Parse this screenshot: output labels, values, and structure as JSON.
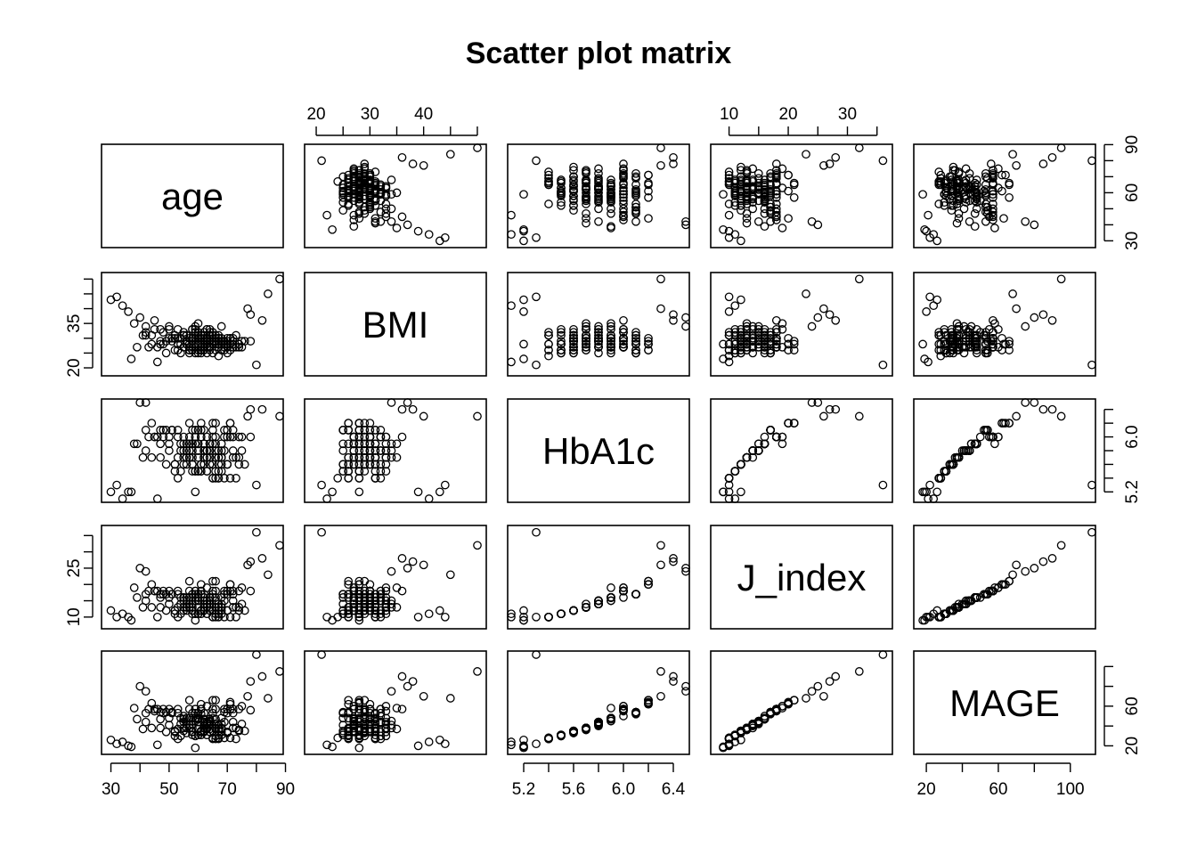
{
  "chart_data": {
    "type": "scatter",
    "title": "Scatter plot matrix",
    "variables": [
      "age",
      "BMI",
      "HbA1c",
      "J_index",
      "MAGE"
    ],
    "grid": false,
    "ranges": {
      "age": [
        28,
        88
      ],
      "BMI": [
        18.5,
        51
      ],
      "HbA1c": [
        5.1,
        6.5
      ],
      "J_index": [
        7.5,
        37
      ],
      "MAGE": [
        15,
        112
      ]
    },
    "axes": {
      "age": {
        "ticks": [
          30,
          50,
          70,
          90
        ],
        "labels": [
          "30",
          "50",
          "70",
          "90"
        ],
        "side": "bottom"
      },
      "BMI": {
        "ticks": [
          20,
          30,
          40
        ],
        "labels": [
          "20",
          "30",
          "40"
        ],
        "side": "top",
        "minor_ticks": [
          20,
          25,
          30,
          35,
          40,
          45,
          50
        ],
        "left_ticks": [
          20,
          25,
          30,
          35,
          40,
          45,
          50
        ],
        "left_labels": {
          "20": "20",
          "35": "35"
        }
      },
      "HbA1c": {
        "ticks": [
          5.2,
          5.6,
          6.0,
          6.4
        ],
        "labels": [
          "5.2",
          "5.6",
          "6.0",
          "6.4"
        ],
        "side": "bottom",
        "minor_ticks": [
          5.2,
          5.4,
          5.6,
          5.8,
          6.0,
          6.2,
          6.4
        ],
        "right_ticks": [
          5.2,
          5.4,
          5.6,
          5.8,
          6.0,
          6.2,
          6.4
        ],
        "right_labels": {
          "5.2": "5.2",
          "6.0": "6.0"
        }
      },
      "J_index": {
        "ticks": [
          10,
          20,
          30
        ],
        "labels": [
          "10",
          "20",
          "30"
        ],
        "side": "top",
        "minor_ticks": [
          10,
          15,
          20,
          25,
          30,
          35
        ],
        "left_ticks": [
          10,
          15,
          20,
          25,
          30,
          35
        ],
        "left_labels": {
          "10": "10",
          "25": "25"
        }
      },
      "MAGE": {
        "ticks": [
          20,
          60,
          100
        ],
        "labels": [
          "20",
          "60",
          "100"
        ],
        "side": "bottom",
        "minor_ticks": [
          20,
          40,
          60,
          80,
          100
        ],
        "right_ticks": [
          20,
          40,
          60,
          80,
          100
        ],
        "right_labels": {
          "20": "20",
          "60": "60"
        }
      },
      "age_right": {
        "ticks": [
          30,
          40,
          50,
          60,
          70,
          80,
          90
        ],
        "labels": {
          "30": "30",
          "60": "60",
          "90": "90"
        }
      },
      "age_bottom_minor": [
        30,
        40,
        50,
        60,
        70,
        80,
        90
      ]
    },
    "points": {
      "age": [
        63,
        58,
        70,
        45,
        66,
        52,
        61,
        74,
        38,
        67,
        55,
        62,
        49,
        71,
        64,
        59,
        68,
        42,
        57,
        65,
        72,
        47,
        60,
        53,
        69,
        62,
        56,
        75,
        41,
        63,
        58,
        66,
        50,
        61,
        78,
        44,
        64,
        59,
        70,
        54,
        62,
        67,
        48,
        57,
        73,
        60,
        65,
        52,
        68,
        63,
        39,
        61,
        56,
        71,
        66,
        58,
        45,
        64,
        60,
        69,
        53,
        62,
        76,
        57,
        67,
        50,
        63,
        59,
        72,
        55,
        64,
        61,
        47,
        68,
        58,
        65,
        42,
        62,
        70,
        56,
        60,
        66,
        51,
        63,
        74,
        59,
        67,
        54,
        61,
        69,
        48,
        64,
        57,
        71,
        62,
        58,
        65,
        44,
        60,
        68,
        53,
        66,
        63,
        59,
        72,
        56,
        61,
        75,
        50,
        64,
        58,
        67,
        62,
        55,
        70,
        46,
        63,
        60,
        65,
        57,
        68,
        52,
        61,
        73,
        59,
        66,
        49,
        64,
        62,
        58,
        69,
        55,
        63,
        71,
        60,
        57,
        67,
        43,
        62,
        65,
        54,
        61,
        68,
        58,
        74,
        63,
        56,
        66,
        60,
        51,
        64,
        70,
        59,
        62,
        57,
        67,
        47,
        63,
        61,
        65,
        53,
        68,
        60,
        72,
        58,
        64,
        55,
        66,
        62,
        59,
        36,
        34,
        32,
        30,
        40,
        82,
        88,
        80,
        37,
        46,
        42,
        78,
        77,
        84
      ],
      "BMI": [
        27,
        30,
        25,
        33,
        29,
        26,
        31,
        28,
        35,
        24,
        32,
        27,
        29,
        30,
        26,
        34,
        28,
        31,
        25,
        29,
        27,
        33,
        30,
        28,
        26,
        32,
        29,
        27,
        31,
        25,
        30,
        28,
        34,
        26,
        29,
        31,
        27,
        33,
        28,
        30,
        26,
        29,
        32,
        27,
        31,
        28,
        25,
        30,
        29,
        33,
        27,
        26,
        31,
        28,
        30,
        29,
        36,
        27,
        32,
        28,
        26,
        31,
        29,
        30,
        27,
        33,
        28,
        25,
        29,
        31,
        27,
        30,
        28,
        34,
        26,
        29,
        32,
        27,
        30,
        28,
        31,
        26,
        29,
        33,
        28,
        27,
        30,
        25,
        31,
        29,
        28,
        32,
        26,
        30,
        27,
        29,
        31,
        28,
        35,
        26,
        30,
        29,
        27,
        32,
        28,
        31,
        25,
        29,
        30,
        27,
        33,
        28,
        26,
        31,
        29,
        27,
        30,
        28,
        32,
        26,
        29,
        31,
        28,
        27,
        30,
        29,
        25,
        33,
        28,
        30,
        27,
        31,
        29,
        26,
        32,
        28,
        30,
        27,
        29,
        31,
        28,
        26,
        30,
        33,
        27,
        29,
        28,
        31,
        25,
        30,
        29,
        27,
        32,
        28,
        26,
        31,
        29,
        30,
        27,
        28,
        33,
        29,
        26,
        30,
        28,
        31,
        27,
        29,
        30,
        28,
        39,
        41,
        44,
        43,
        37,
        36,
        50,
        21,
        23,
        22,
        34,
        38,
        40,
        45
      ],
      "HbA1c": [
        5.7,
        5.9,
        5.6,
        6.0,
        5.8,
        5.5,
        6.1,
        5.7,
        5.9,
        5.4,
        6.0,
        5.8,
        5.6,
        6.2,
        5.7,
        5.9,
        5.5,
        6.1,
        5.8,
        5.6,
        6.0,
        5.7,
        5.9,
        5.4,
        6.1,
        5.8,
        5.6,
        6.0,
        5.7,
        5.5,
        5.9,
        6.2,
        5.8,
        5.6,
        6.0,
        5.7,
        5.9,
        5.5,
        6.1,
        5.8,
        5.6,
        5.7,
        6.0,
        5.9,
        5.4,
        5.8,
        6.1,
        5.6,
        5.7,
        6.0,
        5.9,
        5.5,
        5.8,
        6.2,
        5.7,
        5.6,
        6.0,
        5.9,
        5.8,
        5.4,
        6.1,
        5.7,
        5.6,
        6.0,
        5.8,
        5.9,
        5.5,
        6.1,
        5.7,
        5.6,
        5.8,
        6.0,
        5.9,
        5.7,
        5.5,
        6.2,
        5.8,
        5.6,
        6.0,
        5.7,
        5.9,
        5.4,
        6.1,
        5.8,
        5.6,
        6.0,
        5.7,
        5.9,
        5.5,
        5.8,
        6.1,
        5.6,
        5.7,
        6.0,
        5.9,
        5.8,
        5.4,
        6.2,
        5.7,
        5.6,
        6.0,
        5.9,
        5.8,
        5.5,
        6.1,
        5.7,
        5.6,
        5.8,
        6.0,
        5.9,
        5.7,
        5.5,
        6.1,
        5.8,
        5.6,
        6.0,
        5.7,
        5.9,
        5.4,
        6.2,
        5.8,
        5.6,
        6.0,
        5.7,
        5.9,
        5.5,
        6.1,
        5.8,
        5.7,
        5.6,
        6.0,
        5.9,
        5.8,
        5.4,
        6.1,
        5.7,
        5.6,
        6.0,
        5.8,
        5.9,
        5.5,
        6.2,
        5.7,
        5.6,
        6.0,
        5.8,
        5.9,
        5.7,
        5.5,
        6.1,
        5.8,
        5.6,
        6.0,
        5.7,
        5.9,
        5.4,
        6.1,
        5.8,
        5.6,
        6.0,
        5.7,
        5.9,
        5.5,
        5.8,
        6.1,
        5.6,
        5.7,
        6.0,
        5.9,
        5.2,
        5.2,
        5.1,
        5.3,
        5.2,
        6.5,
        6.4,
        6.3,
        5.3,
        5.2,
        5.1,
        6.5,
        6.4,
        6.3
      ],
      "J_index": [
        14,
        16,
        12,
        18,
        15,
        11,
        17,
        13,
        19,
        10,
        16,
        14,
        12,
        20,
        13,
        15,
        11,
        17,
        14,
        12,
        18,
        13,
        16,
        10,
        17,
        15,
        12,
        19,
        13,
        11,
        16,
        21,
        14,
        12,
        18,
        13,
        15,
        11,
        17,
        14,
        12,
        13,
        18,
        16,
        10,
        15,
        17,
        12,
        13,
        19,
        16,
        11,
        14,
        20,
        13,
        12,
        18,
        16,
        15,
        10,
        17,
        13,
        12,
        18,
        14,
        16,
        11,
        17,
        13,
        12,
        14,
        18,
        16,
        13,
        11,
        21,
        15,
        12,
        18,
        13,
        16,
        10,
        17,
        14,
        12,
        18,
        13,
        16,
        11,
        15,
        17,
        12,
        13,
        18,
        16,
        14,
        10,
        20,
        13,
        12,
        18,
        16,
        15,
        11,
        17,
        13,
        12,
        14,
        18,
        16,
        13,
        11,
        17,
        15,
        12,
        18,
        13,
        16,
        10,
        21,
        14,
        12,
        18,
        13,
        16,
        11,
        17,
        15,
        13,
        12,
        18,
        16,
        14,
        10,
        17,
        13,
        12,
        18,
        15,
        16,
        11,
        20,
        13,
        12,
        18,
        14,
        16,
        13,
        11,
        17,
        15,
        12,
        18,
        13,
        16,
        10,
        17,
        14,
        12,
        18,
        13,
        16,
        11,
        15,
        17,
        12,
        13,
        18,
        16,
        9,
        10,
        11,
        10,
        12,
        25,
        28,
        32,
        36,
        9,
        10,
        24,
        27,
        26,
        23
      ],
      "MAGE": [
        38,
        48,
        33,
        55,
        42,
        30,
        52,
        36,
        58,
        28,
        50,
        40,
        34,
        62,
        37,
        45,
        31,
        53,
        41,
        35,
        57,
        38,
        47,
        27,
        54,
        43,
        33,
        60,
        37,
        31,
        48,
        66,
        41,
        34,
        56,
        38,
        45,
        30,
        53,
        42,
        35,
        37,
        57,
        48,
        27,
        44,
        53,
        34,
        38,
        60,
        47,
        31,
        42,
        64,
        37,
        34,
        57,
        47,
        44,
        28,
        53,
        38,
        35,
        57,
        41,
        48,
        31,
        53,
        38,
        35,
        42,
        57,
        47,
        38,
        31,
        66,
        44,
        34,
        57,
        38,
        48,
        27,
        54,
        42,
        35,
        57,
        37,
        48,
        31,
        44,
        53,
        34,
        38,
        57,
        47,
        42,
        28,
        63,
        37,
        34,
        57,
        47,
        44,
        30,
        53,
        38,
        35,
        42,
        57,
        47,
        38,
        31,
        53,
        44,
        34,
        57,
        37,
        48,
        27,
        66,
        42,
        35,
        57,
        38,
        48,
        30,
        54,
        44,
        38,
        34,
        57,
        47,
        42,
        28,
        53,
        38,
        35,
        57,
        44,
        48,
        30,
        62,
        37,
        34,
        57,
        42,
        48,
        38,
        31,
        53,
        44,
        34,
        57,
        38,
        48,
        27,
        54,
        42,
        35,
        57,
        37,
        48,
        31,
        44,
        53,
        34,
        38,
        57,
        47,
        18,
        20,
        24,
        22,
        26,
        80,
        90,
        95,
        112,
        19,
        21,
        75,
        85,
        70,
        68
      ]
    }
  }
}
